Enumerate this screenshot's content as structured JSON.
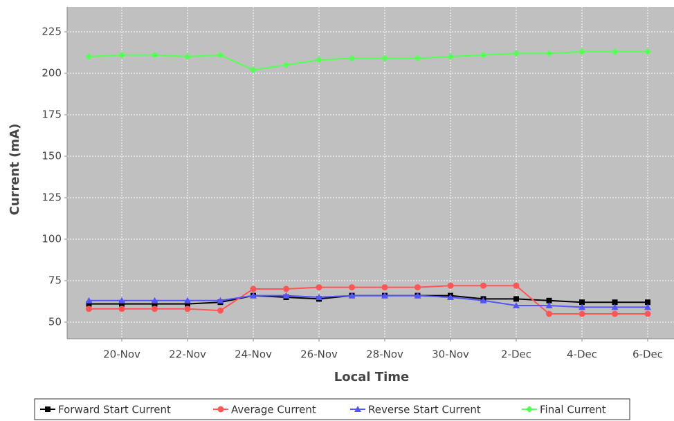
{
  "chart_data": {
    "type": "line",
    "x": [
      "19-Nov",
      "20-Nov",
      "21-Nov",
      "22-Nov",
      "23-Nov",
      "24-Nov",
      "25-Nov",
      "26-Nov",
      "27-Nov",
      "28-Nov",
      "29-Nov",
      "30-Nov",
      "1-Dec",
      "2-Dec",
      "3-Dec",
      "4-Dec",
      "5-Dec",
      "6-Dec"
    ],
    "xticks": [
      "20-Nov",
      "22-Nov",
      "24-Nov",
      "26-Nov",
      "28-Nov",
      "30-Nov",
      "2-Dec",
      "4-Dec",
      "6-Dec"
    ],
    "xlabel": "Local Time",
    "ylabel": "Current (mA)",
    "ylim": [
      40,
      240
    ],
    "yticks": [
      50,
      75,
      100,
      125,
      150,
      175,
      200,
      225
    ],
    "grid": true,
    "legend": "bottom",
    "series": [
      {
        "name": "Forward Start Current",
        "color": "#000000",
        "marker": "square",
        "values": [
          61,
          61,
          61,
          61,
          62,
          66,
          65,
          64,
          66,
          66,
          66,
          66,
          64,
          64,
          63,
          62,
          62,
          62
        ]
      },
      {
        "name": "Average Current",
        "color": "#ff5555",
        "marker": "circle",
        "values": [
          58,
          58,
          58,
          58,
          57,
          70,
          70,
          71,
          71,
          71,
          71,
          72,
          72,
          72,
          55,
          55,
          55,
          55
        ]
      },
      {
        "name": "Reverse Start Current",
        "color": "#5555ff",
        "marker": "triangle",
        "values": [
          63,
          63,
          63,
          63,
          63,
          66,
          66,
          65,
          66,
          66,
          66,
          65,
          63,
          60,
          60,
          59,
          59,
          59
        ]
      },
      {
        "name": "Final Current",
        "color": "#55ff55",
        "marker": "diamond",
        "values": [
          210,
          211,
          211,
          210,
          211,
          202,
          205,
          208,
          209,
          209,
          209,
          210,
          211,
          212,
          212,
          213,
          213,
          213
        ]
      }
    ]
  }
}
